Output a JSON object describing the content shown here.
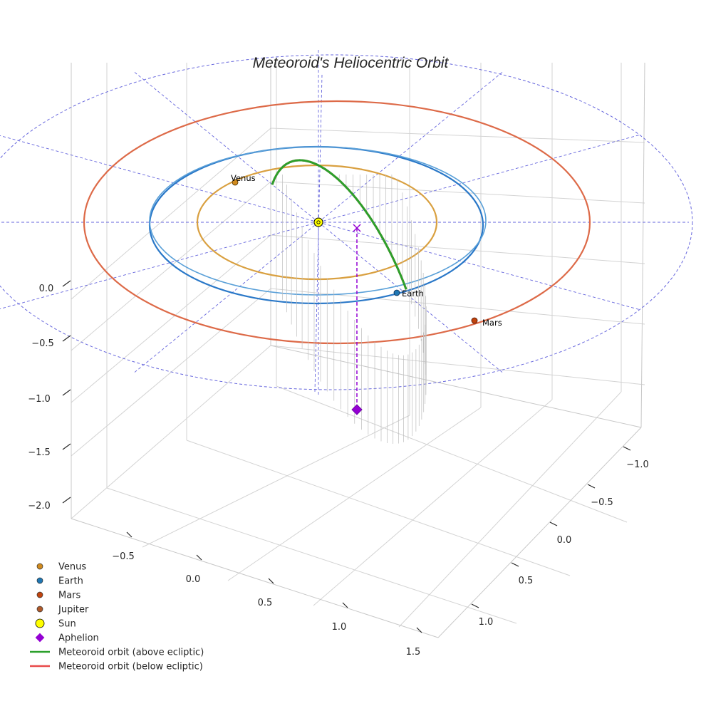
{
  "chart_data": {
    "type": "scatter",
    "projection": "3d",
    "title": "Meteoroid's Heliocentric Orbit",
    "axes": {
      "x": {
        "ticks": [
          "−0.5",
          "0.0",
          "0.5",
          "1.0",
          "1.5"
        ],
        "label": ""
      },
      "y": {
        "ticks": [
          "−1.0",
          "−0.5",
          "0.0",
          "0.5",
          "1.0"
        ],
        "label": ""
      },
      "z": {
        "ticks": [
          "0.0",
          "−0.5",
          "−1.0",
          "−1.5",
          "−2.0"
        ],
        "label": ""
      }
    },
    "grid": true,
    "bodies": [
      {
        "name": "Sun",
        "color": "#ffff00",
        "position": [
          0,
          0,
          0
        ]
      },
      {
        "name": "Venus",
        "color": "#d08a1e",
        "label": "Venus"
      },
      {
        "name": "Earth",
        "color": "#1f77b4",
        "label": "Earth"
      },
      {
        "name": "Mars",
        "color": "#c1440e",
        "label": "Mars"
      },
      {
        "name": "Jupiter",
        "color": "#b05a2a"
      }
    ],
    "planet_orbit_colors": {
      "venus": "#d9a040",
      "earth": "#2a78c8",
      "mars": "#dd6a48",
      "jupiter": "#6666dd"
    },
    "series": [
      {
        "name": "Meteoroid orbit (above ecliptic)",
        "color": "#2ca02c"
      },
      {
        "name": "Meteoroid orbit (below ecliptic)",
        "color": "#e84a4a"
      }
    ],
    "aphelion": {
      "name": "Aphelion",
      "color": "#9400d3"
    },
    "legend": {
      "location": "lower-left",
      "entries": [
        {
          "label": "Venus",
          "marker": "circle",
          "color": "#d08a1e"
        },
        {
          "label": "Earth",
          "marker": "circle",
          "color": "#1f77b4"
        },
        {
          "label": "Mars",
          "marker": "circle",
          "color": "#c1440e"
        },
        {
          "label": "Jupiter",
          "marker": "circle",
          "color": "#b05a2a"
        },
        {
          "label": "Sun",
          "marker": "circle-large",
          "color": "#ffff00"
        },
        {
          "label": "Aphelion",
          "marker": "diamond",
          "color": "#9400d3"
        },
        {
          "label": "Meteoroid orbit (above ecliptic)",
          "marker": "line",
          "color": "#2ca02c"
        },
        {
          "label": "Meteoroid orbit (below ecliptic)",
          "marker": "line",
          "color": "#e84a4a"
        }
      ]
    }
  }
}
